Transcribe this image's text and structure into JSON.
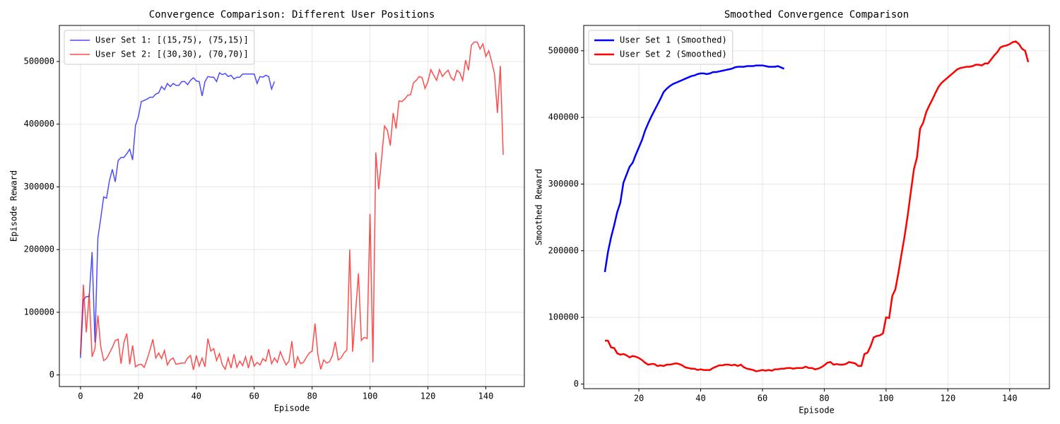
{
  "chart_data": [
    {
      "type": "line",
      "title": "Convergence Comparison: Different User Positions",
      "xlabel": "Episode",
      "ylabel": "Episode Reward",
      "xlim": [
        -7.3,
        153.3
      ],
      "ylim": [
        -18500,
        557500
      ],
      "xticks": [
        0,
        20,
        40,
        60,
        80,
        100,
        120,
        140
      ],
      "yticks": [
        0,
        100000,
        200000,
        300000,
        400000,
        500000
      ],
      "grid": true,
      "legend": "upper left",
      "alpha": 0.7,
      "linewidth": 1.5,
      "series": [
        {
          "name": "User Set 1: [(15,75), (75,15)]",
          "color": "#0000ff",
          "x": [
            0,
            1,
            2,
            3,
            4,
            5,
            6,
            7,
            8,
            9,
            10,
            11,
            12,
            13,
            14,
            15,
            16,
            17,
            18,
            19,
            20,
            21,
            22,
            23,
            24,
            25,
            26,
            27,
            28,
            29,
            30,
            31,
            32,
            33,
            34,
            35,
            36,
            37,
            38,
            39,
            40,
            41,
            42,
            43,
            44,
            45,
            46,
            47,
            48,
            49,
            50,
            51,
            52,
            53,
            54,
            55,
            56,
            57,
            58,
            59,
            60,
            61,
            62,
            63,
            64,
            65,
            66,
            67
          ],
          "values": [
            27000,
            120000,
            125000,
            125000,
            196000,
            52000,
            218000,
            250000,
            284000,
            282000,
            310000,
            328000,
            308000,
            342000,
            347000,
            347000,
            353000,
            360000,
            343000,
            398000,
            412000,
            436000,
            438000,
            440000,
            443000,
            443000,
            448000,
            450000,
            460000,
            455000,
            465000,
            460000,
            465000,
            462000,
            462000,
            468000,
            468000,
            463000,
            470000,
            474000,
            469000,
            468000,
            445000,
            468000,
            476000,
            475000,
            475000,
            468000,
            482000,
            479000,
            481000,
            476000,
            478000,
            472000,
            475000,
            475000,
            480000,
            480000,
            480000,
            480000,
            480000,
            465000,
            476000,
            475000,
            478000,
            476000,
            456000,
            468000
          ]
        },
        {
          "name": "User Set 2: [(30,30), (70,70)]",
          "color": "#ff0000",
          "x": [
            0,
            1,
            2,
            3,
            4,
            5,
            6,
            7,
            8,
            9,
            10,
            11,
            12,
            13,
            14,
            15,
            16,
            17,
            18,
            19,
            20,
            21,
            22,
            23,
            24,
            25,
            26,
            27,
            28,
            29,
            30,
            31,
            32,
            33,
            34,
            35,
            36,
            37,
            38,
            39,
            40,
            41,
            42,
            43,
            44,
            45,
            46,
            47,
            48,
            49,
            50,
            51,
            52,
            53,
            54,
            55,
            56,
            57,
            58,
            59,
            60,
            61,
            62,
            63,
            64,
            65,
            66,
            67,
            68,
            69,
            70,
            71,
            72,
            73,
            74,
            75,
            76,
            77,
            78,
            79,
            80,
            81,
            82,
            83,
            84,
            85,
            86,
            87,
            88,
            89,
            90,
            91,
            92,
            93,
            94,
            95,
            96,
            97,
            98,
            99,
            100,
            101,
            102,
            103,
            104,
            105,
            106,
            107,
            108,
            109,
            110,
            111,
            112,
            113,
            114,
            115,
            116,
            117,
            118,
            119,
            120,
            121,
            122,
            123,
            124,
            125,
            126,
            127,
            128,
            129,
            130,
            131,
            132,
            133,
            134,
            135,
            136,
            137,
            138,
            139,
            140,
            141,
            142,
            143,
            144,
            145,
            146
          ],
          "values": [
            33000,
            144000,
            68000,
            130000,
            29000,
            42000,
            95000,
            45000,
            23000,
            26000,
            35000,
            44000,
            55000,
            57000,
            18000,
            52000,
            66000,
            17000,
            47000,
            13000,
            16000,
            17000,
            12000,
            25000,
            40000,
            57000,
            27000,
            35000,
            26000,
            39000,
            16000,
            24000,
            27000,
            17000,
            18000,
            19000,
            19000,
            27000,
            31000,
            8000,
            31000,
            14000,
            27000,
            13000,
            58000,
            38000,
            42000,
            23000,
            34000,
            16000,
            9000,
            27000,
            11000,
            33000,
            12000,
            22000,
            15000,
            29000,
            11000,
            31000,
            14000,
            20000,
            16000,
            26000,
            22000,
            41000,
            18000,
            27000,
            20000,
            37000,
            26000,
            16000,
            22000,
            54000,
            11000,
            29000,
            18000,
            20000,
            28000,
            35000,
            38000,
            82000,
            32000,
            9000,
            24000,
            19000,
            21000,
            31000,
            53000,
            24000,
            27000,
            35000,
            40000,
            200000,
            37000,
            100000,
            162000,
            55000,
            60000,
            58000,
            257000,
            20000,
            355000,
            296000,
            345000,
            397000,
            390000,
            366000,
            418000,
            393000,
            437000,
            436000,
            440000,
            446000,
            447000,
            466000,
            470000,
            476000,
            474000,
            457000,
            468000,
            487000,
            478000,
            470000,
            487000,
            476000,
            482000,
            486000,
            474000,
            470000,
            486000,
            482000,
            470000,
            502000,
            486000,
            526000,
            531000,
            531000,
            520000,
            528000,
            508000,
            517000,
            500000,
            480000,
            418000,
            493000,
            351000
          ]
        }
      ]
    },
    {
      "type": "line",
      "title": "Smoothed Convergence Comparison",
      "xlabel": "Episode",
      "ylabel": "Smoothed Reward",
      "xlim": [
        2.15,
        152.85
      ],
      "ylim": [
        -7000,
        538000
      ],
      "xticks": [
        20,
        40,
        60,
        80,
        100,
        120,
        140
      ],
      "yticks": [
        0,
        100000,
        200000,
        300000,
        400000,
        500000
      ],
      "grid": true,
      "legend": "upper left",
      "alpha": 1,
      "linewidth": 2.5,
      "series": [
        {
          "name": "User Set 1 (Smoothed)",
          "color": "#0000ff",
          "x": [
            9,
            10,
            11,
            12,
            13,
            14,
            15,
            16,
            17,
            18,
            19,
            20,
            21,
            22,
            23,
            24,
            25,
            26,
            27,
            28,
            29,
            30,
            31,
            32,
            33,
            34,
            35,
            36,
            37,
            38,
            39,
            40,
            41,
            42,
            43,
            44,
            45,
            46,
            47,
            48,
            49,
            50,
            51,
            52,
            53,
            54,
            55,
            56,
            57,
            58,
            59,
            60,
            61,
            62,
            63,
            64,
            65,
            66,
            67
          ],
          "values": [
            168000,
            198000,
            220000,
            238000,
            258000,
            272000,
            302000,
            314000,
            326000,
            332000,
            344000,
            355000,
            366000,
            380000,
            391000,
            401000,
            410000,
            419000,
            428000,
            438000,
            443000,
            447000,
            450000,
            452000,
            454000,
            456000,
            458000,
            460000,
            462000,
            463000,
            465000,
            466000,
            466000,
            465000,
            466000,
            468000,
            468000,
            469000,
            470000,
            471000,
            472000,
            473000,
            475000,
            476000,
            476000,
            476000,
            477000,
            477000,
            477000,
            478000,
            478000,
            478000,
            477000,
            476000,
            476000,
            476000,
            477000,
            475000,
            473000
          ]
        },
        {
          "name": "User Set 2 (Smoothed)",
          "color": "#ff0000",
          "x": [
            9,
            10,
            11,
            12,
            13,
            14,
            15,
            16,
            17,
            18,
            19,
            20,
            21,
            22,
            23,
            24,
            25,
            26,
            27,
            28,
            29,
            30,
            31,
            32,
            33,
            34,
            35,
            36,
            37,
            38,
            39,
            40,
            41,
            42,
            43,
            44,
            45,
            46,
            47,
            48,
            49,
            50,
            51,
            52,
            53,
            54,
            55,
            56,
            57,
            58,
            59,
            60,
            61,
            62,
            63,
            64,
            65,
            66,
            67,
            68,
            69,
            70,
            71,
            72,
            73,
            74,
            75,
            76,
            77,
            78,
            79,
            80,
            81,
            82,
            83,
            84,
            85,
            86,
            87,
            88,
            89,
            90,
            91,
            92,
            93,
            94,
            95,
            96,
            97,
            98,
            99,
            100,
            101,
            102,
            103,
            104,
            105,
            106,
            107,
            108,
            109,
            110,
            111,
            112,
            113,
            114,
            115,
            116,
            117,
            118,
            119,
            120,
            121,
            122,
            123,
            124,
            125,
            126,
            127,
            128,
            129,
            130,
            131,
            132,
            133,
            134,
            135,
            136,
            137,
            138,
            139,
            140,
            141,
            142,
            143,
            144,
            145,
            146
          ],
          "values": [
            65000,
            65000,
            55000,
            54000,
            46000,
            44000,
            45000,
            43000,
            40000,
            42000,
            41000,
            39000,
            36000,
            32000,
            29000,
            30000,
            30000,
            27000,
            28000,
            27000,
            29000,
            29000,
            30000,
            31000,
            30000,
            28000,
            25000,
            24000,
            23000,
            23000,
            21000,
            22000,
            21000,
            21000,
            21000,
            24000,
            26000,
            28000,
            28000,
            29000,
            29000,
            28000,
            29000,
            27000,
            29000,
            25000,
            23000,
            22000,
            21000,
            19000,
            20000,
            21000,
            20000,
            21000,
            20000,
            22000,
            22000,
            23000,
            23000,
            24000,
            24000,
            23000,
            24000,
            24000,
            24000,
            26000,
            24000,
            24000,
            22000,
            23000,
            25000,
            28000,
            32000,
            33000,
            29000,
            30000,
            29000,
            29000,
            30000,
            33000,
            32000,
            31000,
            27000,
            27000,
            45000,
            47000,
            57000,
            70000,
            72000,
            73000,
            76000,
            100000,
            99000,
            132000,
            142000,
            167000,
            195000,
            222000,
            253000,
            288000,
            322000,
            340000,
            383000,
            392000,
            408000,
            418000,
            427000,
            437000,
            446000,
            452000,
            456000,
            460000,
            464000,
            468000,
            472000,
            474000,
            475000,
            476000,
            476000,
            477000,
            479000,
            479000,
            478000,
            481000,
            481000,
            487000,
            493000,
            498000,
            505000,
            507000,
            508000,
            510000,
            513000,
            514000,
            510000,
            503000,
            500000,
            483000
          ]
        }
      ]
    }
  ]
}
